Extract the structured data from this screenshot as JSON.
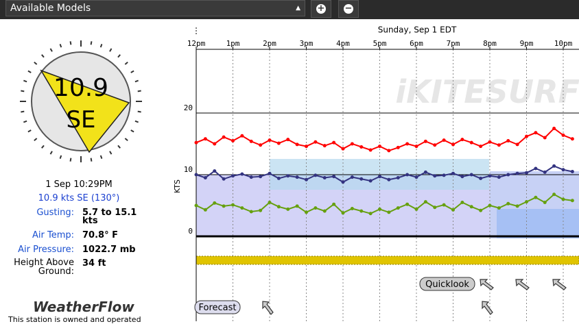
{
  "toolbar": {
    "select": "Available Models"
  },
  "station": {
    "compass_speed": "10.9",
    "compass_dir": "SE",
    "time": "1 Sep 10:29PM",
    "wind": "10.9 kts SE (130°)",
    "rows": [
      [
        "Gusting:",
        "5.7 to 15.1 kts"
      ],
      [
        "Air Temp:",
        "70.8° F"
      ],
      [
        "Air Pressure:",
        "1022.7 mb"
      ],
      [
        "Height Above Ground:",
        "34 ft"
      ]
    ],
    "logo": "WeatherFlow",
    "footer": "This station is owned and operated"
  },
  "chart_data": {
    "type": "line",
    "title": "Sunday, Sep 1 EDT",
    "y_label": "KTS",
    "watermark": "iKITESURF",
    "buttons": [
      "Quicklook",
      "Forecast"
    ],
    "xlim": [
      0,
      10.43
    ],
    "ylim": [
      0,
      30.33
    ],
    "yticks": [
      0,
      10,
      20
    ],
    "grid": true,
    "xticks": [
      {
        "value": 0,
        "label": "12pm"
      },
      {
        "value": 1,
        "label": "1pm"
      },
      {
        "value": 2,
        "label": "2pm"
      },
      {
        "value": 3,
        "label": "3pm"
      },
      {
        "value": 4,
        "label": "4pm"
      },
      {
        "value": 5,
        "label": "5pm"
      },
      {
        "value": 6,
        "label": "6pm"
      },
      {
        "value": 7,
        "label": "7pm"
      },
      {
        "value": 8,
        "label": "8pm"
      },
      {
        "value": 9,
        "label": "9pm"
      },
      {
        "value": 10,
        "label": "10pm"
      }
    ],
    "x": [
      0,
      0.25,
      0.5,
      0.75,
      1,
      1.25,
      1.5,
      1.75,
      2,
      2.25,
      2.5,
      2.75,
      3,
      3.25,
      3.5,
      3.75,
      4,
      4.25,
      4.5,
      4.75,
      5,
      5.25,
      5.5,
      5.75,
      6,
      6.25,
      6.5,
      6.75,
      7,
      7.25,
      7.5,
      7.75,
      8,
      8.25,
      8.5,
      8.75,
      9,
      9.25,
      9.5,
      9.75,
      10,
      10.25
    ],
    "series": [
      {
        "color": "#ff0000",
        "values": [
          15.2,
          15.8,
          15.0,
          16.1,
          15.5,
          16.3,
          15.4,
          14.8,
          15.6,
          15.1,
          15.7,
          14.9,
          14.6,
          15.3,
          14.7,
          15.2,
          14.2,
          15.0,
          14.5,
          14.0,
          14.6,
          13.9,
          14.4,
          15.0,
          14.6,
          15.4,
          14.8,
          15.6,
          14.9,
          15.7,
          15.2,
          14.6,
          15.3,
          14.8,
          15.5,
          14.9,
          16.2,
          16.8,
          16.0,
          17.5,
          16.4,
          15.8
        ]
      },
      {
        "color": "#333380",
        "values": [
          10.0,
          9.5,
          10.6,
          9.3,
          9.8,
          10.1,
          9.6,
          9.7,
          10.2,
          9.4,
          9.8,
          9.6,
          9.2,
          9.9,
          9.5,
          9.7,
          8.8,
          9.6,
          9.3,
          9.0,
          9.7,
          9.2,
          9.5,
          10.0,
          9.6,
          10.4,
          9.8,
          9.9,
          10.2,
          9.7,
          10.0,
          9.4,
          9.8,
          9.6,
          10.0,
          10.2,
          10.3,
          11.0,
          10.4,
          11.4,
          10.8,
          10.5
        ]
      },
      {
        "color": "#66a00f",
        "values": [
          5.0,
          4.3,
          5.4,
          4.9,
          5.1,
          4.6,
          4.0,
          4.2,
          5.5,
          4.8,
          4.4,
          4.9,
          3.9,
          4.6,
          4.1,
          5.2,
          3.8,
          4.5,
          4.1,
          3.7,
          4.4,
          3.9,
          4.6,
          5.2,
          4.4,
          5.6,
          4.7,
          5.1,
          4.3,
          5.5,
          4.8,
          4.2,
          5.0,
          4.6,
          5.3,
          4.9,
          5.6,
          6.3,
          5.5,
          6.8,
          6.0,
          5.8
        ]
      }
    ]
  }
}
